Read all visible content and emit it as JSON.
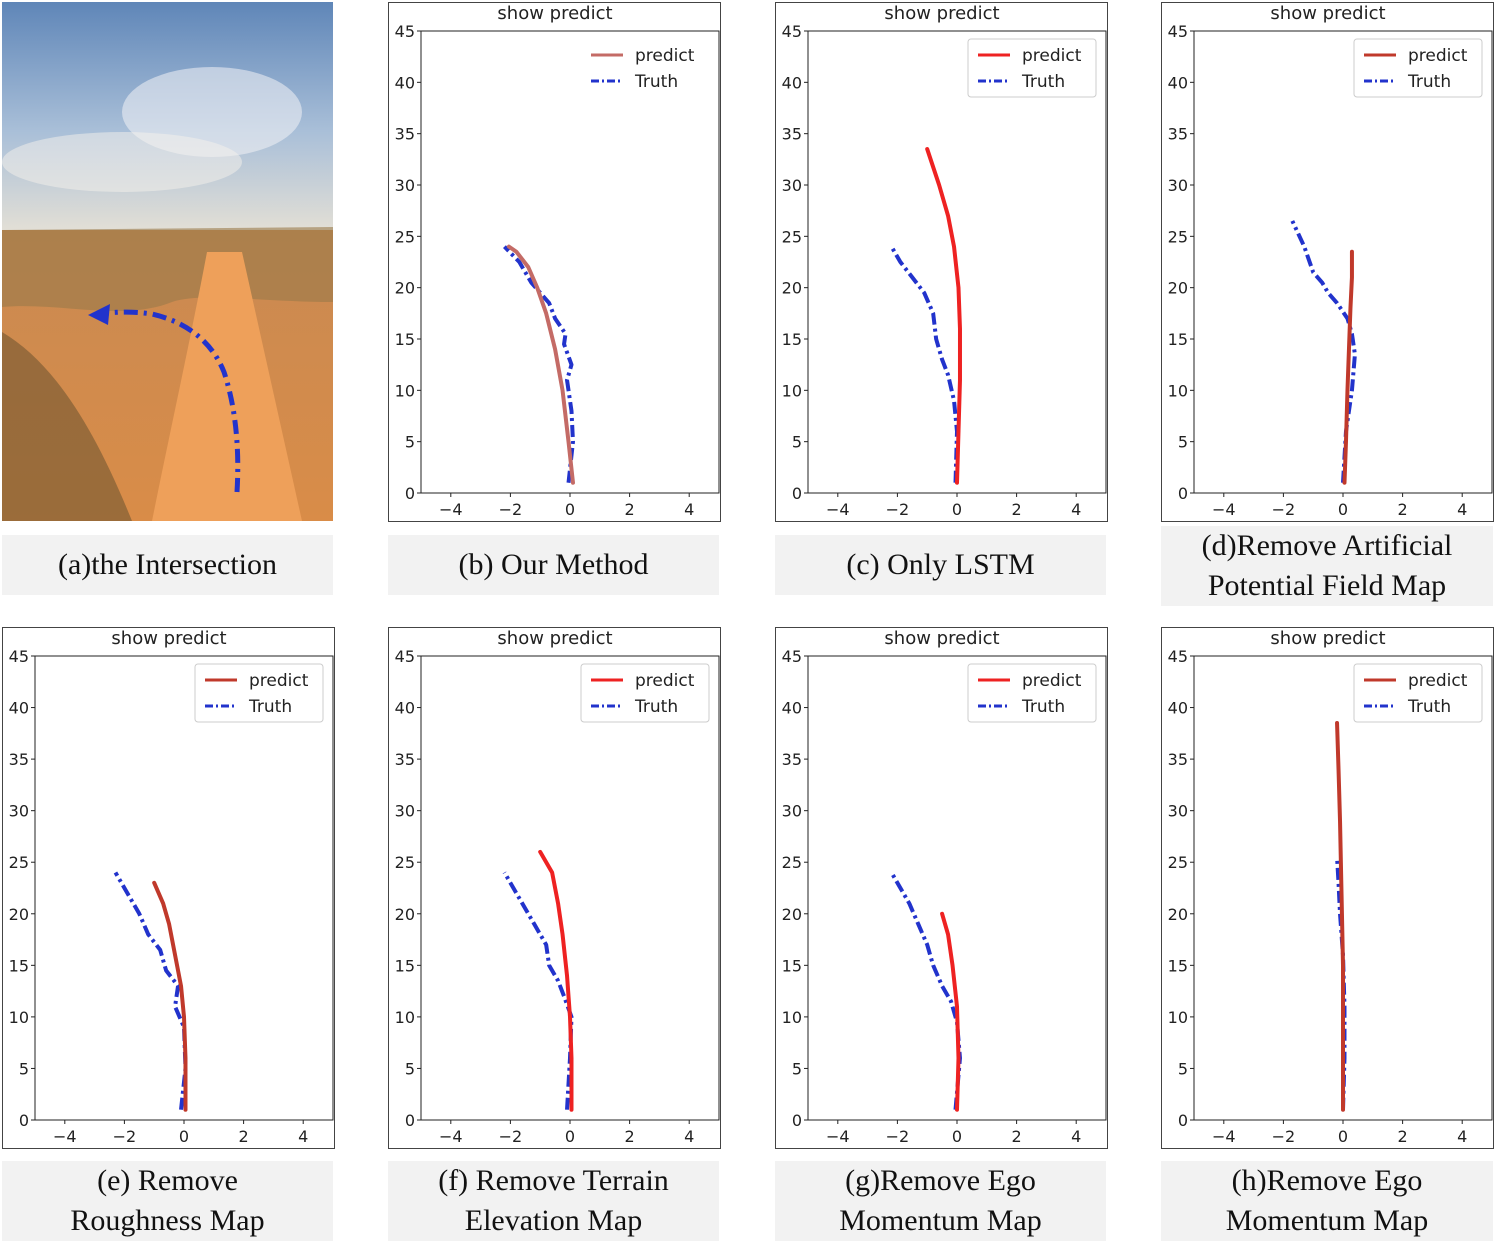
{
  "photo": {
    "caption": "(a)the Intersection",
    "colors": {
      "sky_top": "#5f86b8",
      "sky_bottom": "#e6e1d6",
      "ground": "#d88a46",
      "road": "#e79a55",
      "scrub": "#8a6a3a",
      "arrow": "#2233cc"
    }
  },
  "captions": {
    "b": [
      "(b) Our Method"
    ],
    "c": [
      "(c) Only LSTM"
    ],
    "d": [
      "(d)Remove Artificial",
      "Potential Field Map"
    ],
    "e": [
      "(e) Remove",
      "Roughness Map"
    ],
    "f": [
      "(f) Remove Terrain",
      "Elevation Map"
    ],
    "g": [
      "(g)Remove Ego",
      "Momentum Map"
    ],
    "h": [
      "(h)Remove Ego",
      "Momentum Map"
    ]
  },
  "chart_data": [
    {
      "id": "b",
      "type": "line",
      "title": "show predict",
      "xlim": [
        -5,
        5
      ],
      "ylim": [
        0,
        45
      ],
      "xticks": [
        -4,
        -2,
        0,
        2,
        4
      ],
      "yticks": [
        0,
        5,
        10,
        15,
        20,
        25,
        30,
        35,
        40,
        45
      ],
      "xtick_labels": [
        "−4",
        "−2",
        "0",
        "2",
        "4"
      ],
      "ytick_labels": [
        "0",
        "5",
        "10",
        "15",
        "20",
        "25",
        "30",
        "35",
        "40",
        "45"
      ],
      "legend": {
        "predict": "predict",
        "truth": "Truth",
        "framed": false
      },
      "colors": {
        "predict": "#c46b66",
        "truth": "#2233cc"
      },
      "series": [
        {
          "name": "predict",
          "x": [
            0.1,
            -0.05,
            -0.25,
            -0.5,
            -0.8,
            -1.1,
            -1.4,
            -1.8,
            -2.05
          ],
          "y": [
            1,
            5,
            10,
            14,
            17.5,
            20,
            22,
            23.5,
            24
          ]
        },
        {
          "name": "Truth",
          "x": [
            -0.05,
            0.1,
            0.05,
            -0.1,
            0.05,
            -0.2,
            -0.15,
            -0.5,
            -0.7,
            -1.3,
            -1.7,
            -2.2
          ],
          "y": [
            1,
            5,
            8,
            11,
            12.5,
            14.5,
            15.5,
            17,
            18.5,
            20.5,
            22.5,
            24
          ]
        }
      ]
    },
    {
      "id": "c",
      "type": "line",
      "title": "show predict",
      "xlim": [
        -5,
        5
      ],
      "ylim": [
        0,
        45
      ],
      "xticks": [
        -4,
        -2,
        0,
        2,
        4
      ],
      "yticks": [
        0,
        5,
        10,
        15,
        20,
        25,
        30,
        35,
        40,
        45
      ],
      "xtick_labels": [
        "−4",
        "−2",
        "0",
        "2",
        "4"
      ],
      "ytick_labels": [
        "0",
        "5",
        "10",
        "15",
        "20",
        "25",
        "30",
        "35",
        "40",
        "45"
      ],
      "legend": {
        "predict": "predict",
        "truth": "Truth",
        "framed": true
      },
      "colors": {
        "predict": "#ee2222",
        "truth": "#2233cc"
      },
      "series": [
        {
          "name": "predict",
          "x": [
            0,
            0.05,
            0.1,
            0.1,
            0.05,
            -0.1,
            -0.3,
            -0.6,
            -1.0
          ],
          "y": [
            1,
            6,
            11,
            16,
            20,
            24,
            27,
            30,
            33.5
          ]
        },
        {
          "name": "Truth",
          "x": [
            -0.05,
            0.0,
            -0.1,
            -0.3,
            -0.5,
            -0.7,
            -0.8,
            -1.1,
            -1.5,
            -1.9,
            -2.2
          ],
          "y": [
            1,
            6,
            9,
            11.5,
            13,
            15,
            17.5,
            19.5,
            21,
            22.5,
            24
          ]
        }
      ]
    },
    {
      "id": "d",
      "type": "line",
      "title": "show predict",
      "xlim": [
        -5,
        5
      ],
      "ylim": [
        0,
        45
      ],
      "xticks": [
        -4,
        -2,
        0,
        2,
        4
      ],
      "yticks": [
        0,
        5,
        10,
        15,
        20,
        25,
        30,
        35,
        40,
        45
      ],
      "xtick_labels": [
        "−4",
        "−2",
        "0",
        "2",
        "4"
      ],
      "ytick_labels": [
        "0",
        "5",
        "10",
        "15",
        "20",
        "25",
        "30",
        "35",
        "40",
        "45"
      ],
      "legend": {
        "predict": "predict",
        "truth": "Truth",
        "framed": true
      },
      "colors": {
        "predict": "#c0392b",
        "truth": "#2233cc"
      },
      "series": [
        {
          "name": "predict",
          "x": [
            0.05,
            0.1,
            0.15,
            0.2,
            0.25,
            0.3,
            0.3
          ],
          "y": [
            1,
            5,
            10,
            14,
            18,
            21,
            23.5
          ]
        },
        {
          "name": "Truth",
          "x": [
            0.0,
            0.1,
            0.3,
            0.4,
            0.3,
            0.15,
            -0.2,
            -0.5,
            -0.7,
            -1.0,
            -1.3,
            -1.7
          ],
          "y": [
            1,
            6,
            10,
            13.5,
            15.5,
            17,
            18.5,
            19.5,
            20.5,
            21.5,
            24,
            26.5
          ]
        }
      ]
    },
    {
      "id": "e",
      "type": "line",
      "title": "show predict",
      "xlim": [
        -5,
        5
      ],
      "ylim": [
        0,
        45
      ],
      "xticks": [
        -4,
        -2,
        0,
        2,
        4
      ],
      "yticks": [
        0,
        5,
        10,
        15,
        20,
        25,
        30,
        35,
        40,
        45
      ],
      "xtick_labels": [
        "−4",
        "−2",
        "0",
        "2",
        "4"
      ],
      "ytick_labels": [
        "0",
        "5",
        "10",
        "15",
        "20",
        "25",
        "30",
        "35",
        "40",
        "45"
      ],
      "legend": {
        "predict": "predict",
        "truth": "Truth",
        "framed": true
      },
      "colors": {
        "predict": "#c0392b",
        "truth": "#2233cc"
      },
      "series": [
        {
          "name": "predict",
          "x": [
            0.05,
            0.05,
            0.0,
            -0.1,
            -0.3,
            -0.5,
            -0.7,
            -1.0
          ],
          "y": [
            1,
            6,
            10,
            13,
            16,
            19,
            21,
            23
          ]
        },
        {
          "name": "Truth",
          "x": [
            -0.1,
            0.05,
            0.0,
            -0.3,
            -0.2,
            -0.6,
            -0.8,
            -1.2,
            -1.5,
            -1.9,
            -2.3
          ],
          "y": [
            1,
            5,
            9,
            11,
            13,
            14.5,
            16.5,
            18,
            20,
            22,
            24
          ]
        }
      ]
    },
    {
      "id": "f",
      "type": "line",
      "title": "show predict",
      "xlim": [
        -5,
        5
      ],
      "ylim": [
        0,
        45
      ],
      "xticks": [
        -4,
        -2,
        0,
        2,
        4
      ],
      "yticks": [
        0,
        5,
        10,
        15,
        20,
        25,
        30,
        35,
        40,
        45
      ],
      "xtick_labels": [
        "−4",
        "−2",
        "0",
        "2",
        "4"
      ],
      "ytick_labels": [
        "0",
        "5",
        "10",
        "15",
        "20",
        "25",
        "30",
        "35",
        "40",
        "45"
      ],
      "legend": {
        "predict": "predict",
        "truth": "Truth",
        "framed": true
      },
      "colors": {
        "predict": "#ee2222",
        "truth": "#2233cc"
      },
      "series": [
        {
          "name": "predict",
          "x": [
            0.05,
            0.05,
            0.0,
            -0.1,
            -0.25,
            -0.4,
            -0.6,
            -1.0
          ],
          "y": [
            1,
            6,
            10,
            14,
            18,
            21,
            24,
            26
          ]
        },
        {
          "name": "Truth",
          "x": [
            -0.1,
            0.0,
            0.05,
            -0.2,
            -0.4,
            -0.7,
            -0.8,
            -1.1,
            -1.5,
            -1.9,
            -2.2
          ],
          "y": [
            1,
            6,
            10,
            12,
            13.5,
            15,
            17,
            18.5,
            20.5,
            22.5,
            24
          ]
        }
      ]
    },
    {
      "id": "g",
      "type": "line",
      "title": "show predict",
      "xlim": [
        -5,
        5
      ],
      "ylim": [
        0,
        45
      ],
      "xticks": [
        -4,
        -2,
        0,
        2,
        4
      ],
      "yticks": [
        0,
        5,
        10,
        15,
        20,
        25,
        30,
        35,
        40,
        45
      ],
      "xtick_labels": [
        "−4",
        "−2",
        "0",
        "2",
        "4"
      ],
      "ytick_labels": [
        "0",
        "5",
        "10",
        "15",
        "20",
        "25",
        "30",
        "35",
        "40",
        "45"
      ],
      "legend": {
        "predict": "predict",
        "truth": "Truth",
        "framed": true
      },
      "colors": {
        "predict": "#ee2222",
        "truth": "#2233cc"
      },
      "series": [
        {
          "name": "predict",
          "x": [
            0.0,
            0.05,
            0.0,
            -0.15,
            -0.3,
            -0.5
          ],
          "y": [
            1,
            6,
            11,
            15,
            18,
            20
          ]
        },
        {
          "name": "Truth",
          "x": [
            -0.05,
            0.1,
            0.0,
            -0.2,
            -0.5,
            -0.8,
            -1.0,
            -1.3,
            -1.6,
            -1.9,
            -2.2
          ],
          "y": [
            1,
            6,
            9.5,
            11.5,
            13,
            15,
            17,
            19,
            21,
            22.5,
            24
          ]
        }
      ]
    },
    {
      "id": "h",
      "type": "line",
      "title": "show predict",
      "xlim": [
        -5,
        5
      ],
      "ylim": [
        0,
        45
      ],
      "xticks": [
        -4,
        -2,
        0,
        2,
        4
      ],
      "yticks": [
        0,
        5,
        10,
        15,
        20,
        25,
        30,
        35,
        40,
        45
      ],
      "xtick_labels": [
        "−4",
        "−2",
        "0",
        "2",
        "4"
      ],
      "ytick_labels": [
        "0",
        "5",
        "10",
        "15",
        "20",
        "25",
        "30",
        "35",
        "40",
        "45"
      ],
      "legend": {
        "predict": "predict",
        "truth": "Truth",
        "framed": true
      },
      "colors": {
        "predict": "#c0392b",
        "truth": "#2233cc"
      },
      "series": [
        {
          "name": "predict",
          "x": [
            0.0,
            0.0,
            0.0,
            -0.05,
            -0.1,
            -0.15,
            -0.2
          ],
          "y": [
            1,
            8,
            15,
            22,
            29,
            34,
            38.5
          ]
        },
        {
          "name": "Truth",
          "x": [
            0.0,
            0.05,
            0.05,
            0.0,
            -0.1,
            -0.15,
            -0.2
          ],
          "y": [
            1,
            6,
            11,
            16,
            20,
            23,
            25.5
          ]
        }
      ]
    }
  ]
}
